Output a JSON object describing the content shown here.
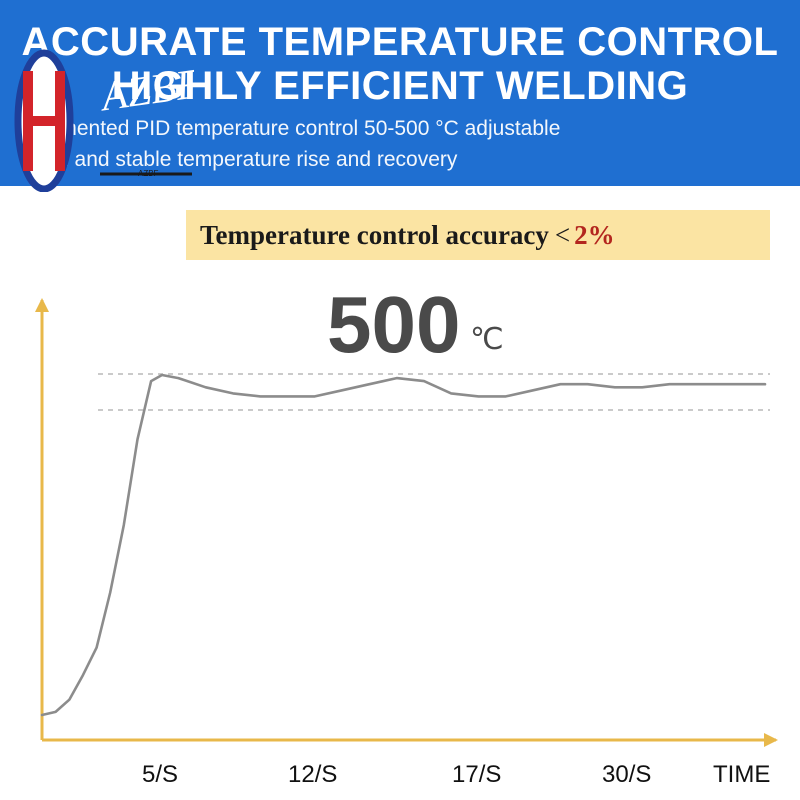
{
  "banner": {
    "headline_line1": "ACCURATE TEMPERATURE CONTROL",
    "headline_line2": "HIGHLY EFFICIENT WELDING",
    "subline_line1": "Segmented PID temperature control 50-500 °C adjustable",
    "subline_line2": "rapid and stable temperature rise and recovery",
    "background_color": "#1f6fd1"
  },
  "logo": {
    "text": "AZBF",
    "small_text": "AZBF",
    "colors": {
      "ring": "#1f3f9a",
      "mark": "#d3242a"
    }
  },
  "accuracy_box": {
    "label": "Temperature control accuracy",
    "symbol": "<",
    "value": "2%",
    "background_color": "#fbe4a3",
    "value_color": "#b3261e"
  },
  "chart_data": {
    "type": "line",
    "title": "",
    "xlabel": "TIME",
    "ylabel": "",
    "setpoint_label": "500",
    "setpoint_unit": "℃",
    "x_ticks": [
      "5/S",
      "12/S",
      "17/S",
      "30/S"
    ],
    "x_axis_label": "TIME",
    "band_lines": [
      "upper",
      "lower"
    ],
    "series": [
      {
        "values": [
          [
            0.0,
            0.0
          ],
          [
            0.5,
            0.01
          ],
          [
            1.0,
            0.05
          ],
          [
            1.5,
            0.13
          ],
          [
            2.0,
            0.22
          ],
          [
            2.5,
            0.4
          ],
          [
            3.0,
            0.62
          ],
          [
            3.5,
            0.9
          ],
          [
            4.0,
            1.09
          ],
          [
            4.4,
            1.11
          ],
          [
            5.0,
            1.1
          ],
          [
            6.0,
            1.07
          ],
          [
            7.0,
            1.05
          ],
          [
            8.0,
            1.04
          ],
          [
            9.0,
            1.04
          ],
          [
            10.0,
            1.04
          ],
          [
            11.0,
            1.06
          ],
          [
            12.0,
            1.08
          ],
          [
            13.0,
            1.1
          ],
          [
            14.0,
            1.09
          ],
          [
            15.0,
            1.05
          ],
          [
            16.0,
            1.04
          ],
          [
            17.0,
            1.04
          ],
          [
            18.0,
            1.06
          ],
          [
            19.0,
            1.08
          ],
          [
            20.0,
            1.08
          ],
          [
            21.0,
            1.07
          ],
          [
            22.0,
            1.07
          ],
          [
            23.0,
            1.08
          ],
          [
            24.0,
            1.08
          ],
          [
            25.0,
            1.08
          ],
          [
            26.5,
            1.08
          ]
        ],
        "color": "#8c8c8c"
      }
    ],
    "colors": {
      "axis": "#e8b84a",
      "band": "#b8b8b8",
      "curve": "#8c8c8c"
    }
  }
}
